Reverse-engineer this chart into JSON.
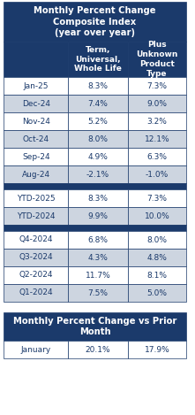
{
  "title_line1": "Monthly Percent Change",
  "title_line2": "Composite Index",
  "title_line3": "(year over year)",
  "col1_header": "Term,\nUniversal,\nWhole Life",
  "col2_header": "Plus\nUnknown\nProduct\nType",
  "rows": [
    {
      "label": "Jan-25",
      "v1": "8.3%",
      "v2": "7.3%",
      "shade": false
    },
    {
      "label": "Dec-24",
      "v1": "7.4%",
      "v2": "9.0%",
      "shade": true
    },
    {
      "label": "Nov-24",
      "v1": "5.2%",
      "v2": "3.2%",
      "shade": false
    },
    {
      "label": "Oct-24",
      "v1": "8.0%",
      "v2": "12.1%",
      "shade": true
    },
    {
      "label": "Sep-24",
      "v1": "4.9%",
      "v2": "6.3%",
      "shade": false
    },
    {
      "label": "Aug-24",
      "v1": "-2.1%",
      "v2": "-1.0%",
      "shade": true
    }
  ],
  "ytd_rows": [
    {
      "label": "YTD-2025",
      "v1": "8.3%",
      "v2": "7.3%",
      "shade": false
    },
    {
      "label": "YTD-2024",
      "v1": "9.9%",
      "v2": "10.0%",
      "shade": true
    }
  ],
  "q_rows": [
    {
      "label": "Q4-2024",
      "v1": "6.8%",
      "v2": "8.0%",
      "shade": false
    },
    {
      "label": "Q3-2024",
      "v1": "4.3%",
      "v2": "4.8%",
      "shade": true
    },
    {
      "label": "Q2-2024",
      "v1": "11.7%",
      "v2": "8.1%",
      "shade": false
    },
    {
      "label": "Q1-2024",
      "v1": "7.5%",
      "v2": "5.0%",
      "shade": true
    }
  ],
  "title2_line1": "Monthly Percent Change vs Prior",
  "title2_line2": "Month",
  "bottom_rows": [
    {
      "label": "January",
      "v1": "20.1%",
      "v2": "17.9%",
      "shade": false
    }
  ],
  "header_bg": "#1B3A6B",
  "header_fg": "#FFFFFF",
  "row_bg_light": "#FFFFFF",
  "row_bg_shade": "#CDD5E0",
  "row_fg": "#1B3A6B",
  "sep_bg": "#1B3A6B",
  "border_color": "#1B3A6B",
  "fig_w": 2.21,
  "fig_h": 4.69,
  "dpi": 100
}
